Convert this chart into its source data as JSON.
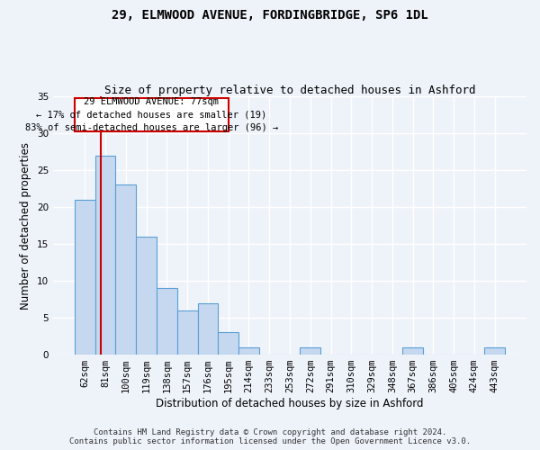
{
  "title": "29, ELMWOOD AVENUE, FORDINGBRIDGE, SP6 1DL",
  "subtitle": "Size of property relative to detached houses in Ashford",
  "xlabel": "Distribution of detached houses by size in Ashford",
  "ylabel": "Number of detached properties",
  "categories": [
    "62sqm",
    "81sqm",
    "100sqm",
    "119sqm",
    "138sqm",
    "157sqm",
    "176sqm",
    "195sqm",
    "214sqm",
    "233sqm",
    "253sqm",
    "272sqm",
    "291sqm",
    "310sqm",
    "329sqm",
    "348sqm",
    "367sqm",
    "386sqm",
    "405sqm",
    "424sqm",
    "443sqm"
  ],
  "values": [
    21,
    27,
    23,
    16,
    9,
    6,
    7,
    3,
    1,
    0,
    0,
    1,
    0,
    0,
    0,
    0,
    1,
    0,
    0,
    0,
    1
  ],
  "bar_color": "#c5d8f0",
  "bar_edge_color": "#5a9fd4",
  "background_color": "#eef3fa",
  "grid_color": "#ffffff",
  "ylim": [
    0,
    35
  ],
  "yticks": [
    0,
    5,
    10,
    15,
    20,
    25,
    30,
    35
  ],
  "annotation_line1": "29 ELMWOOD AVENUE: 77sqm",
  "annotation_line2": "← 17% of detached houses are smaller (19)",
  "annotation_line3": "83% of semi-detached houses are larger (96) →",
  "vline_color": "#cc0000",
  "footer_line1": "Contains HM Land Registry data © Crown copyright and database right 2024.",
  "footer_line2": "Contains public sector information licensed under the Open Government Licence v3.0.",
  "title_fontsize": 10,
  "subtitle_fontsize": 9,
  "axis_label_fontsize": 8.5,
  "tick_fontsize": 7.5,
  "annotation_fontsize": 7.5,
  "footer_fontsize": 6.5
}
